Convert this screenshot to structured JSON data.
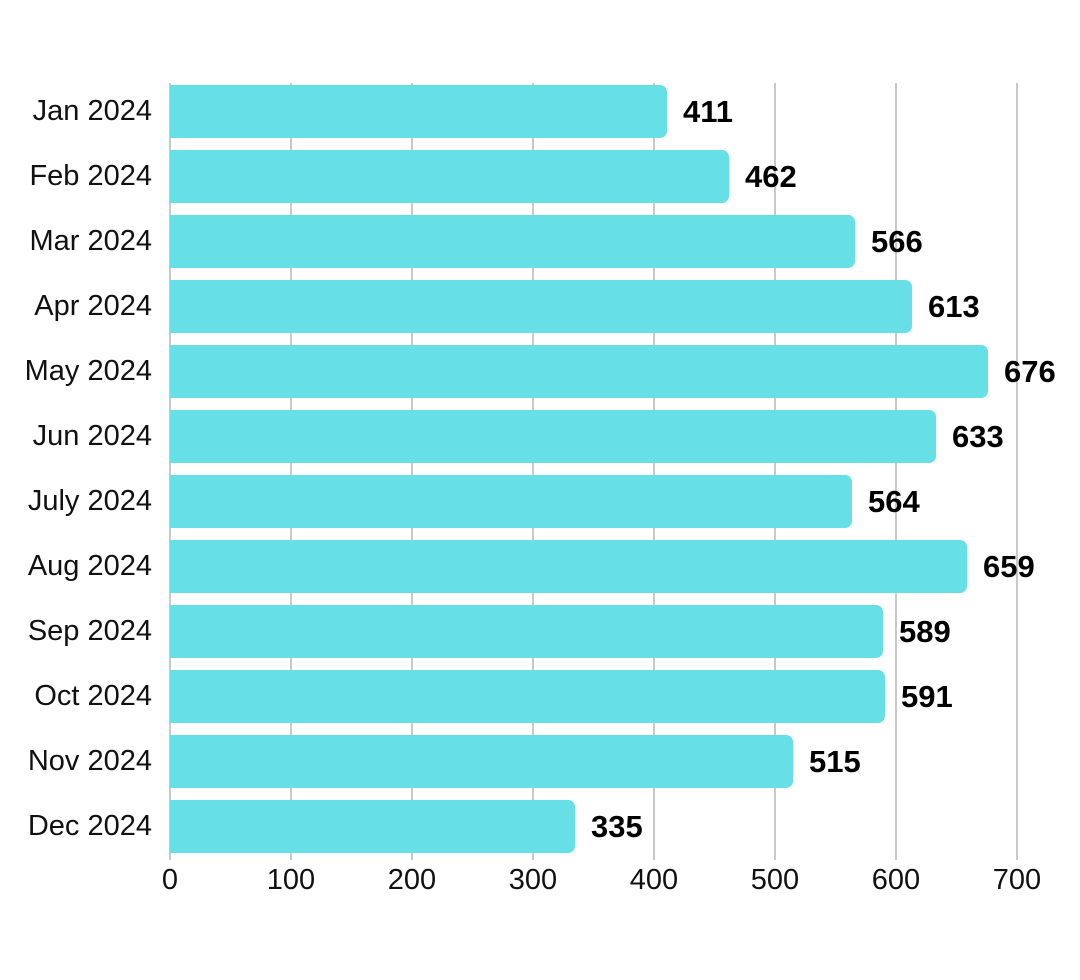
{
  "chart_data": {
    "type": "bar",
    "orientation": "horizontal",
    "title": "",
    "xlabel": "",
    "ylabel": "",
    "categories": [
      "Jan 2024",
      "Feb 2024",
      "Mar 2024",
      "Apr 2024",
      "May 2024",
      "Jun 2024",
      "July 2024",
      "Aug 2024",
      "Sep 2024",
      "Oct 2024",
      "Nov 2024",
      "Dec 2024"
    ],
    "values": [
      411,
      462,
      566,
      613,
      676,
      633,
      564,
      659,
      589,
      591,
      515,
      335
    ],
    "value_labels": [
      "411",
      "462",
      "566",
      "613",
      "676",
      "633",
      "564",
      "659",
      "589",
      "591",
      "515",
      "335"
    ],
    "x_ticks": [
      0,
      100,
      200,
      300,
      400,
      500,
      600,
      700
    ],
    "xlim": [
      0,
      732
    ],
    "grid": true,
    "legend": "none",
    "colors": {
      "bar": "#66E0E6",
      "gridline": "#c9c9c9",
      "value_label": "#000000",
      "axis_label": "#111111",
      "background": "#ffffff"
    }
  }
}
